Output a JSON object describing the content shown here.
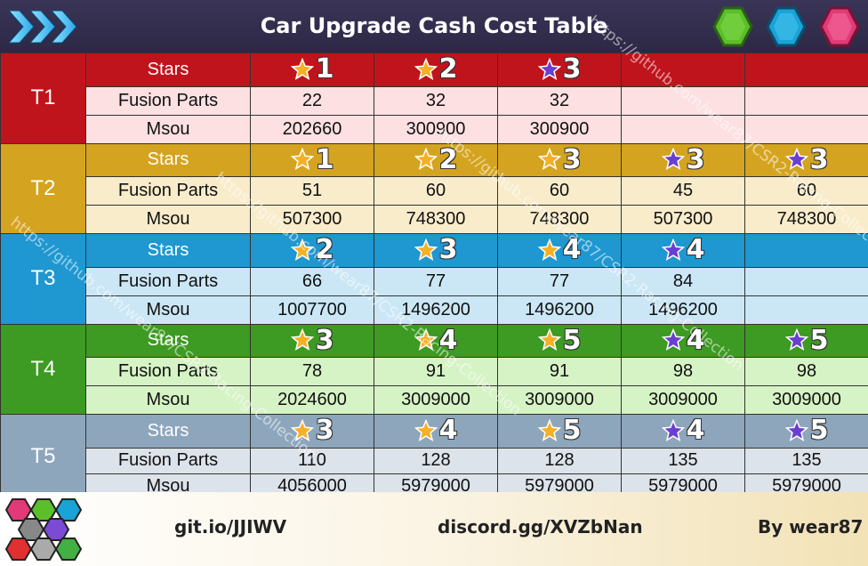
{
  "header": {
    "title": "Car Upgrade Cash Cost Table",
    "hex_colors": [
      "#5bbf2a",
      "#1aa3d6",
      "#e23a78"
    ]
  },
  "labels": {
    "stars": "Stars",
    "fusion": "Fusion Parts",
    "msou": "Msou"
  },
  "colors": {
    "gold_star": "#f5b025",
    "purple_star": "#6a3fd0"
  },
  "tiers": [
    {
      "name": "T1",
      "color": "#c0141c",
      "stars_bg": "#c0141c",
      "row_bg": "#fde0e2",
      "stars": [
        {
          "n": "1",
          "type": "gold"
        },
        {
          "n": "2",
          "type": "gold"
        },
        {
          "n": "3",
          "type": "purple"
        },
        {
          "n": "",
          "type": ""
        },
        {
          "n": "",
          "type": ""
        }
      ],
      "fusion": [
        "22",
        "32",
        "32",
        "",
        ""
      ],
      "msou": [
        "202660",
        "300900",
        "300900",
        "",
        ""
      ]
    },
    {
      "name": "T2",
      "color": "#d4a420",
      "stars_bg": "#d4a420",
      "row_bg": "#f9eccb",
      "stars": [
        {
          "n": "1",
          "type": "gold"
        },
        {
          "n": "2",
          "type": "gold"
        },
        {
          "n": "3",
          "type": "gold"
        },
        {
          "n": "3",
          "type": "purple"
        },
        {
          "n": "3",
          "type": "purple"
        }
      ],
      "fusion": [
        "51",
        "60",
        "60",
        "45",
        "60"
      ],
      "msou": [
        "507300",
        "748300",
        "748300",
        "507300",
        "748300"
      ]
    },
    {
      "name": "T3",
      "color": "#1f97d1",
      "stars_bg": "#1f97d1",
      "row_bg": "#cbe7f6",
      "stars": [
        {
          "n": "2",
          "type": "gold"
        },
        {
          "n": "3",
          "type": "gold"
        },
        {
          "n": "4",
          "type": "gold"
        },
        {
          "n": "4",
          "type": "purple"
        },
        {
          "n": "",
          "type": ""
        }
      ],
      "fusion": [
        "66",
        "77",
        "77",
        "84",
        ""
      ],
      "msou": [
        "1007700",
        "1496200",
        "1496200",
        "1496200",
        ""
      ]
    },
    {
      "name": "T4",
      "color": "#3d9a22",
      "stars_bg": "#3d9a22",
      "row_bg": "#d6f3c5",
      "stars": [
        {
          "n": "3",
          "type": "gold"
        },
        {
          "n": "4",
          "type": "gold"
        },
        {
          "n": "5",
          "type": "gold"
        },
        {
          "n": "4",
          "type": "purple"
        },
        {
          "n": "5",
          "type": "purple"
        }
      ],
      "fusion": [
        "78",
        "91",
        "91",
        "98",
        "98"
      ],
      "msou": [
        "2024600",
        "3009000",
        "3009000",
        "3009000",
        "3009000"
      ]
    },
    {
      "name": "T5",
      "color": "#8ea6bc",
      "stars_bg": "#8ea6bc",
      "row_bg": "#dde3ea",
      "stars": [
        {
          "n": "3",
          "type": "gold"
        },
        {
          "n": "4",
          "type": "gold"
        },
        {
          "n": "5",
          "type": "gold"
        },
        {
          "n": "4",
          "type": "purple"
        },
        {
          "n": "5",
          "type": "purple"
        }
      ],
      "fusion": [
        "110",
        "128",
        "128",
        "135",
        "135"
      ],
      "msou": [
        "4056000",
        "5979000",
        "5979000",
        "5979000",
        "5979000"
      ]
    }
  ],
  "footer": {
    "link1": "git.io/JJIWV",
    "link2": "discord.gg/XVZbNan",
    "author": "By wear87"
  },
  "watermark": "https://github.com/wear87/CSR2-Racing-Collection"
}
